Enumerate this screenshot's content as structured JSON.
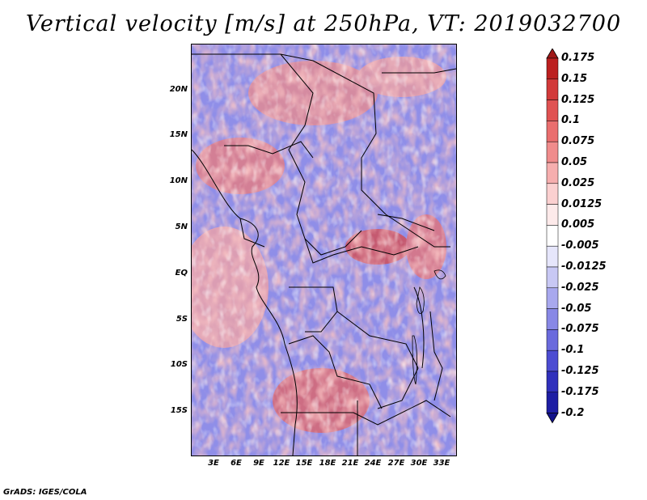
{
  "title": "Vertical velocity [m/s] at 250hPa, VT: 2019032700",
  "lat_labels": [
    "20N",
    "15N",
    "10N",
    "5N",
    "EQ",
    "5S",
    "10S",
    "15S"
  ],
  "lon_labels": [
    "3E",
    "6E",
    "9E",
    "12E",
    "15E",
    "18E",
    "21E",
    "24E",
    "27E",
    "30E",
    "33E"
  ],
  "colorbar": {
    "labels": [
      "0.175",
      "0.15",
      "0.125",
      "0.1",
      "0.075",
      "0.05",
      "0.025",
      "0.0125",
      "0.005",
      "-0.005",
      "-0.0125",
      "-0.025",
      "-0.05",
      "-0.075",
      "-0.1",
      "-0.125",
      "-0.175",
      "-0.2"
    ],
    "colors": [
      "#a01818",
      "#bc2020",
      "#d23a3a",
      "#e05252",
      "#ea6e6e",
      "#f08c8c",
      "#f6aeae",
      "#fbd0d0",
      "#fdeaea",
      "#ffffff",
      "#e6e6fb",
      "#c8c8f4",
      "#a8a8ee",
      "#8888e6",
      "#6a6add",
      "#4c4cd2",
      "#3030bc",
      "#1e1ea4",
      "#12128a"
    ]
  },
  "credit": "GrADS: IGES/COLA"
}
